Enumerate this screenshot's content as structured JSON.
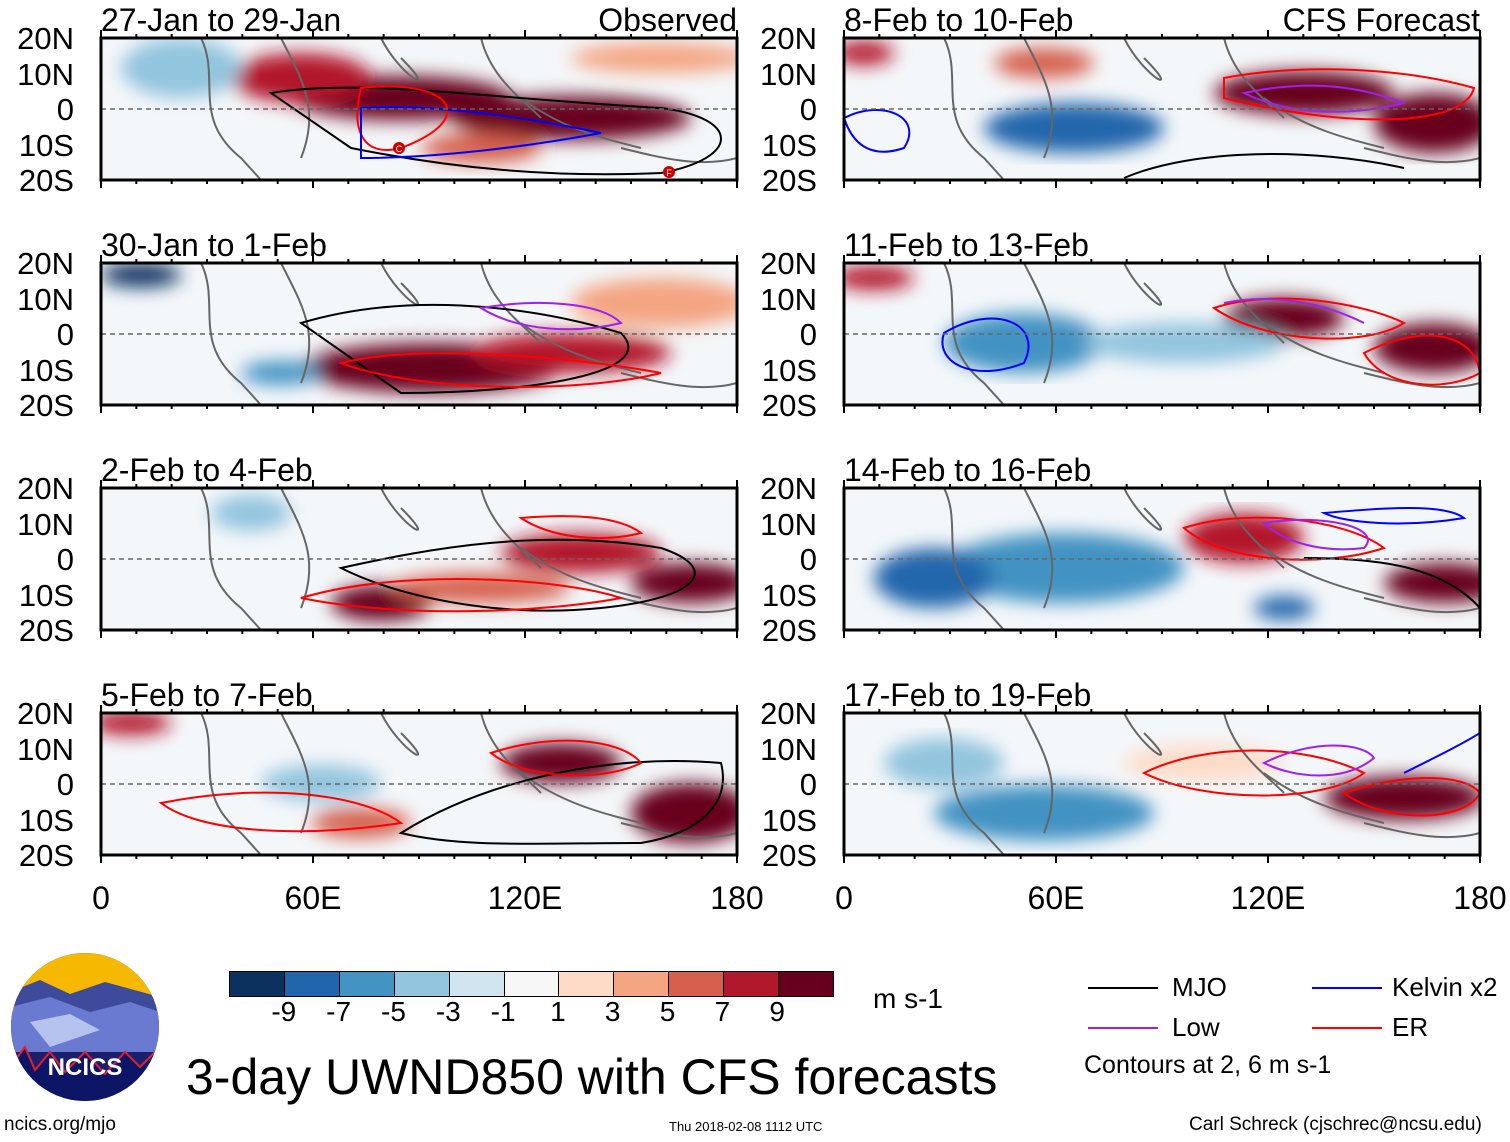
{
  "panels": [
    {
      "title": "27-Jan to 29-Jan",
      "right_title": "Observed"
    },
    {
      "title": "30-Jan to 1-Feb",
      "right_title": ""
    },
    {
      "title": "2-Feb to 4-Feb",
      "right_title": ""
    },
    {
      "title": "5-Feb to 7-Feb",
      "right_title": ""
    },
    {
      "title": "8-Feb to 10-Feb",
      "right_title": "CFS Forecast"
    },
    {
      "title": "11-Feb to 13-Feb",
      "right_title": ""
    },
    {
      "title": "14-Feb to 16-Feb",
      "right_title": ""
    },
    {
      "title": "17-Feb to 19-Feb",
      "right_title": ""
    }
  ],
  "y_axis_labels": [
    "20N",
    "10N",
    "0",
    "10S",
    "20S"
  ],
  "x_axis_labels": [
    "0",
    "60E",
    "120E",
    "180"
  ],
  "colorbar": {
    "colors": [
      "#0b305e",
      "#2166ac",
      "#4393c3",
      "#92c5de",
      "#d1e5f0",
      "#f7f7f7",
      "#fddbc7",
      "#f4a582",
      "#d6604d",
      "#b2182b",
      "#67001f"
    ],
    "labels": [
      "-9",
      "-7",
      "-5",
      "-3",
      "-1",
      "1",
      "3",
      "5",
      "7",
      "9"
    ],
    "units": "m s-1"
  },
  "legend": {
    "items": [
      {
        "label": "MJO",
        "color": "#000000"
      },
      {
        "label": "Kelvin x2",
        "color": "#0000ff"
      },
      {
        "label": "Low",
        "color": "#a020f0"
      },
      {
        "label": "ER",
        "color": "#ff0000"
      }
    ],
    "contours_note": "Contours at 2, 6 m s-1"
  },
  "logo_text": "NCICS",
  "main_title": "3-day UWND850 with CFS forecasts",
  "footer": {
    "url": "ncics.org/mjo",
    "timestamp": "Thu 2018-02-08 1112 UTC",
    "author": "Carl Schreck (cjschrec@ncsu.edu)"
  },
  "storm_markers": [
    "C",
    "F"
  ]
}
